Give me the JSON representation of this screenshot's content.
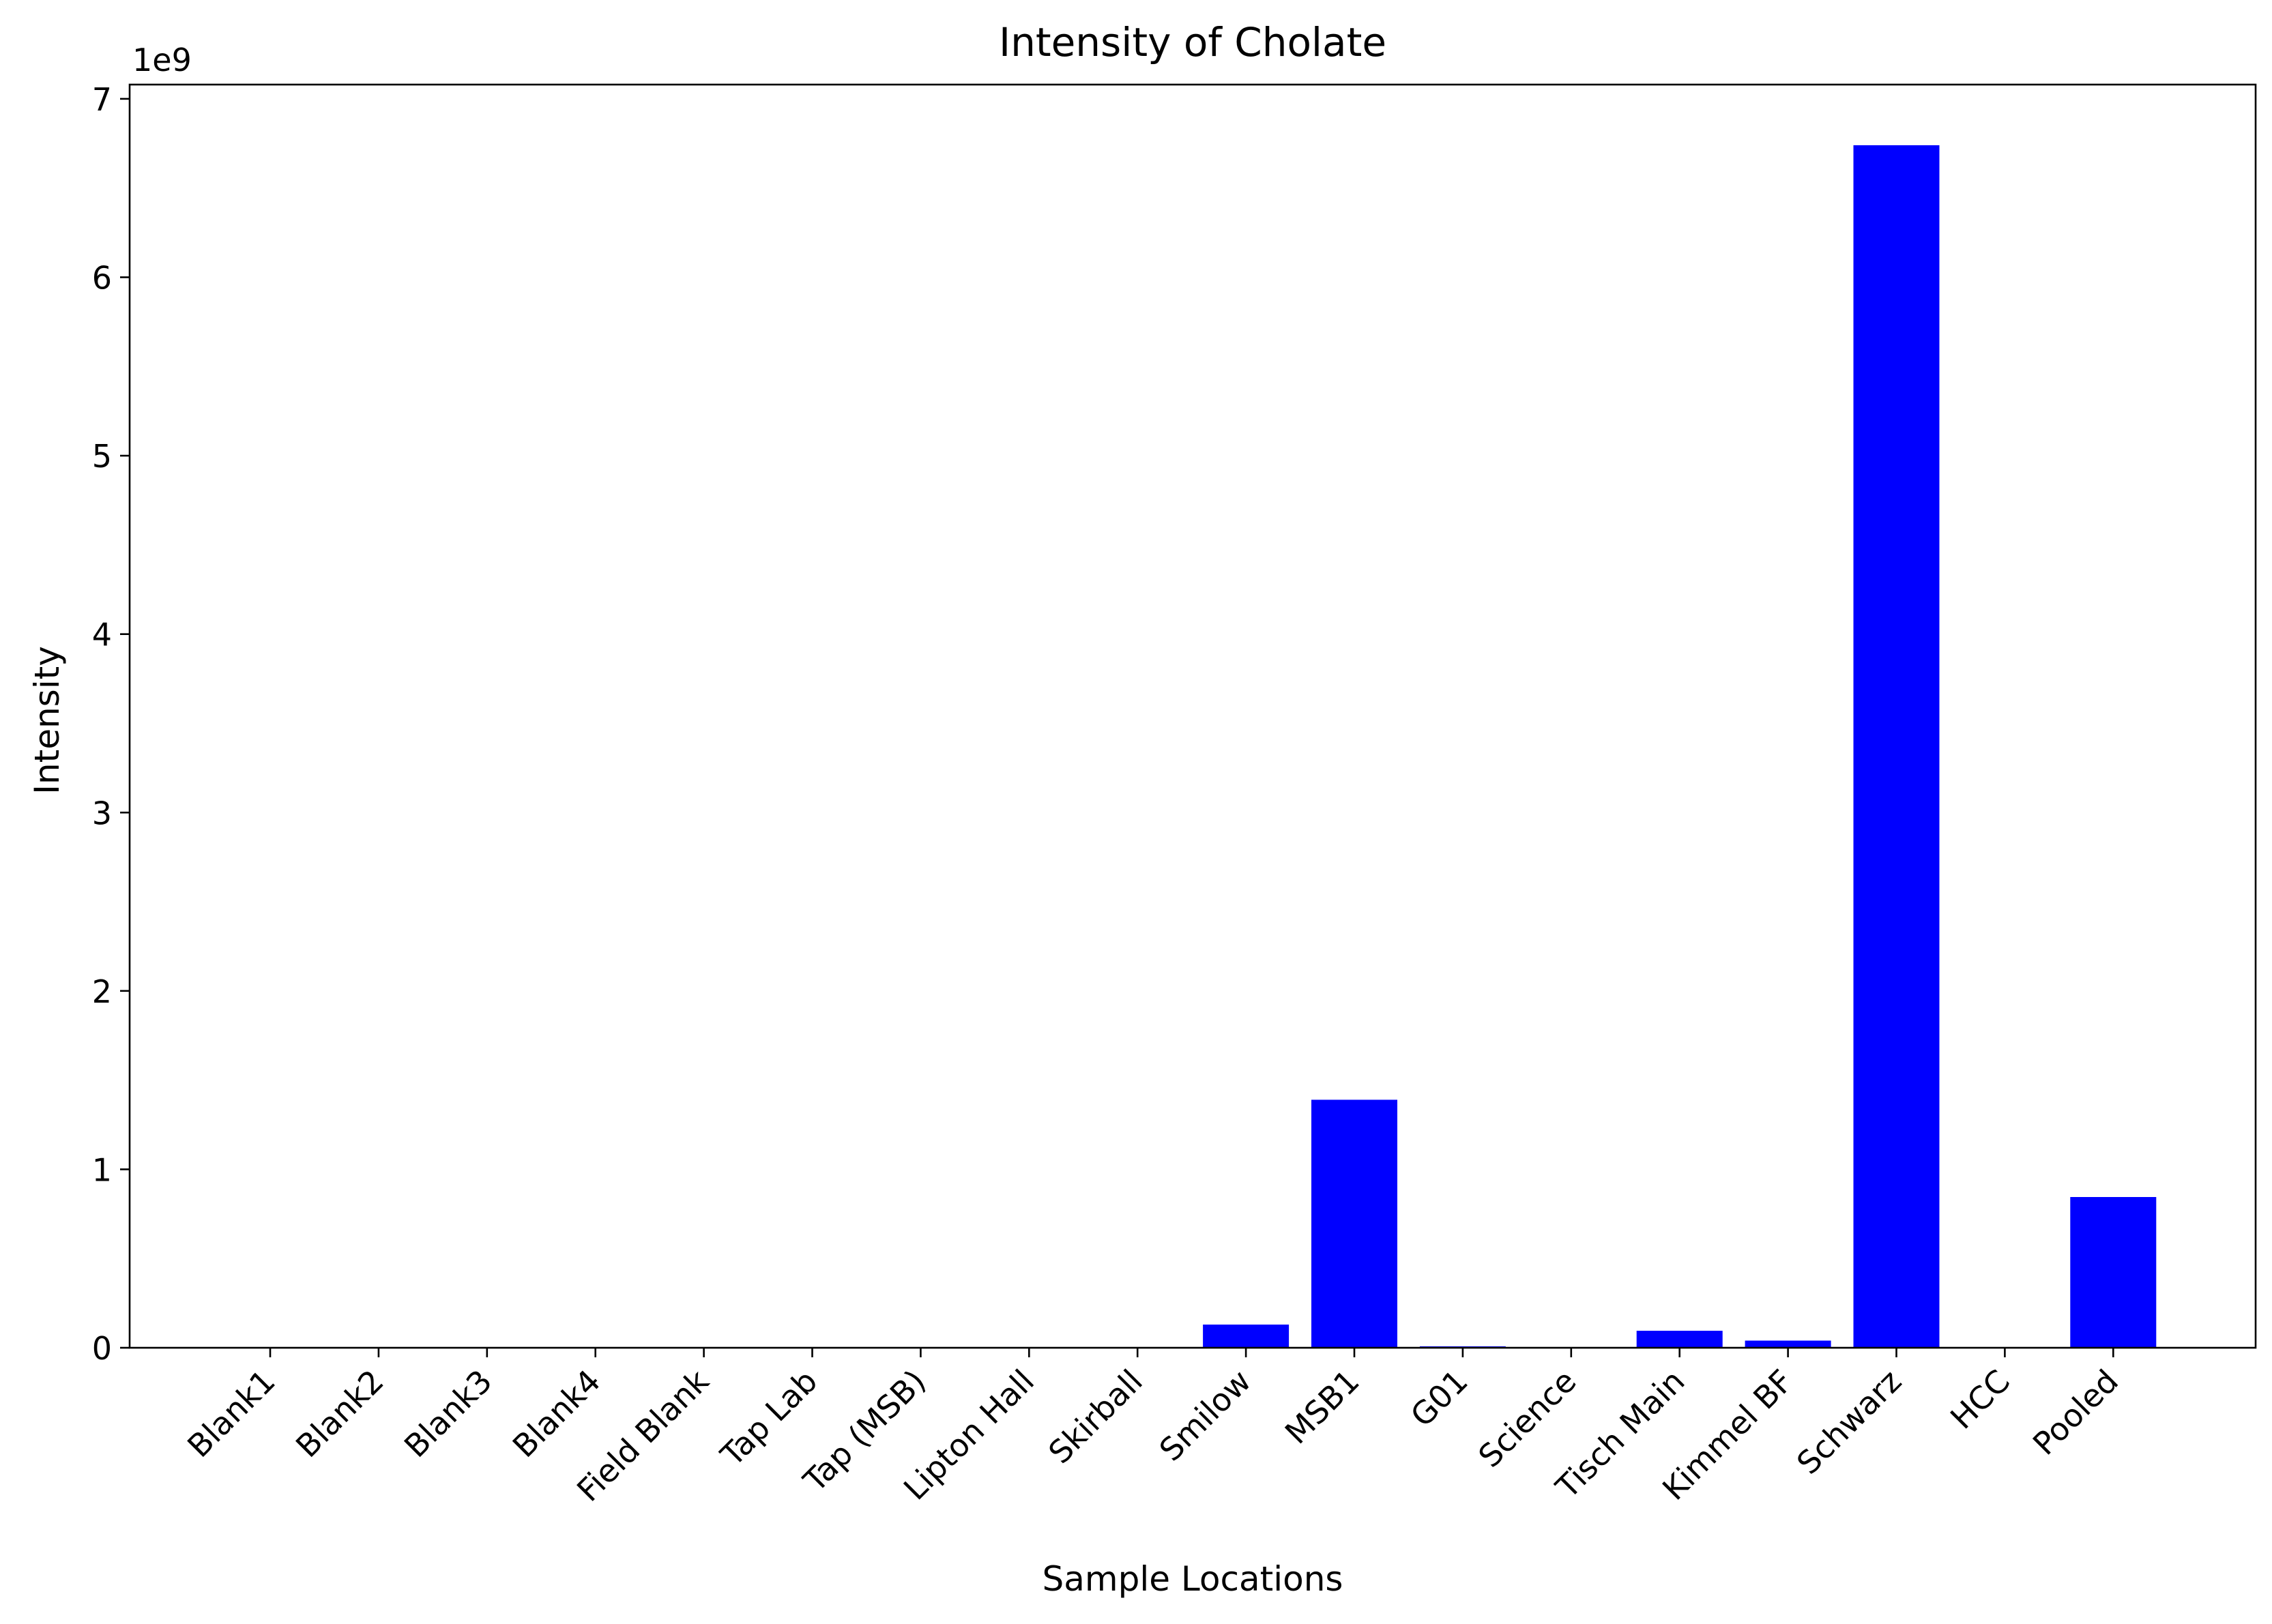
{
  "chart_data": {
    "type": "bar",
    "title": "Intensity of Cholate",
    "xlabel": "Sample Locations",
    "ylabel": "Intensity",
    "offset_label": "1e9",
    "categories": [
      "Blank1",
      "Blank2",
      "Blank3",
      "Blank4",
      "Field Blank",
      "Tap Lab",
      "Tap (MSB)",
      "Lipton Hall",
      "Skirball",
      "Smilow",
      "MSB1",
      "G01",
      "Science",
      "Tisch Main",
      "Kimmel BF",
      "Schwarz",
      "HCC",
      "Pooled"
    ],
    "values": [
      0,
      0,
      0,
      0,
      0,
      0,
      0,
      0,
      0,
      130000000,
      1390000000,
      8000000,
      0,
      95000000,
      40000000,
      6740000000,
      0,
      845000000
    ],
    "ylim": [
      0,
      7080000000
    ],
    "yticks": [
      0,
      1,
      2,
      3,
      4,
      5,
      6,
      7
    ],
    "ytick_scale": 1000000000,
    "bar_color": "#0000ff",
    "grid": false,
    "legend": "none"
  }
}
